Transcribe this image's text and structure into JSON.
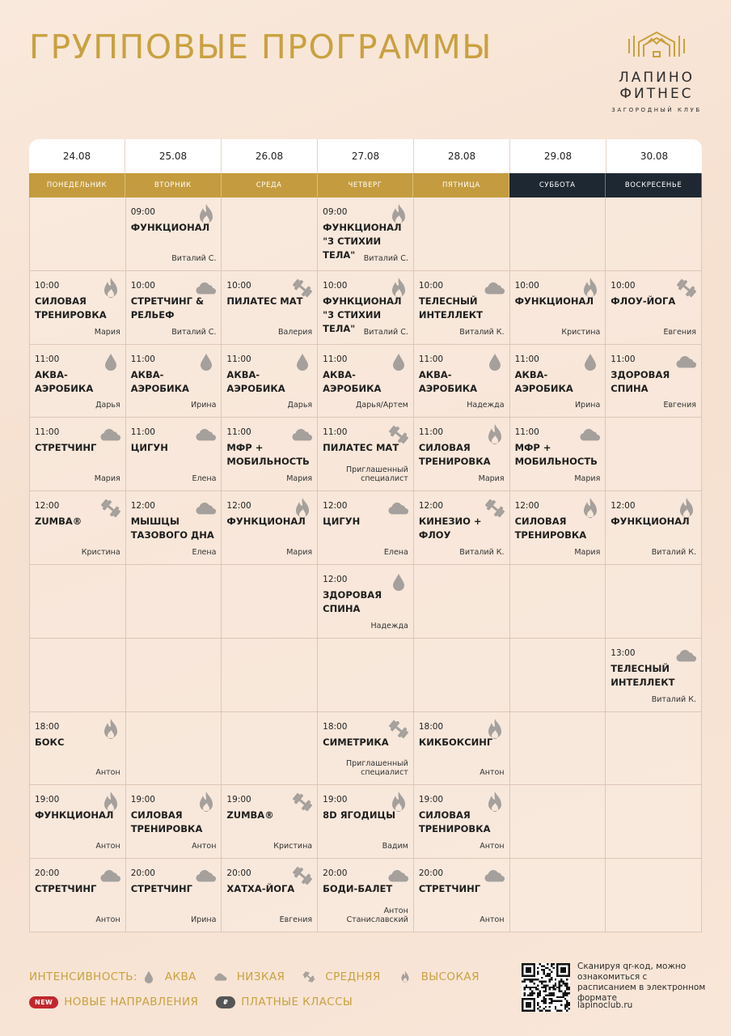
{
  "title": "ГРУППОВЫЕ ПРОГРАММЫ",
  "logo": {
    "line1": "ЛАПИНО",
    "line2": "ФИТНЕС",
    "line3": "ЗАГОРОДНЫЙ КЛУБ",
    "icon": "house-dumbbell-logo",
    "color": "#c9a13f"
  },
  "colors": {
    "gold": "#c49b3e",
    "dark": "#1e2832",
    "icon_gray": "#a5a09c"
  },
  "dates": [
    "24.08",
    "25.08",
    "26.08",
    "27.08",
    "28.08",
    "29.08",
    "30.08"
  ],
  "days": [
    "ПОНЕДЕЛЬНИК",
    "ВТОРНИК",
    "СРЕДА",
    "ЧЕТВЕРГ",
    "ПЯТНИЦА",
    "СУББОТА",
    "ВОСКРЕСЕНЬЕ"
  ],
  "weekend_days": [
    5,
    6
  ],
  "schedule": [
    [
      null,
      {
        "time": "09:00",
        "name": "ФУНКЦИОНАЛ",
        "coach": "Виталий С.",
        "intensity": "high"
      },
      null,
      {
        "time": "09:00",
        "name": "ФУНКЦИОНАЛ\n\"3 СТИХИИ ТЕЛА\"",
        "coach": "Виталий С.",
        "intensity": "high"
      },
      null,
      null,
      null
    ],
    [
      {
        "time": "10:00",
        "name": "СИЛОВАЯ\nТРЕНИРОВКА",
        "coach": "Мария",
        "intensity": "high"
      },
      {
        "time": "10:00",
        "name": "СТРЕТЧИНГ &\nРЕЛЬЕФ",
        "coach": "Виталий С.",
        "intensity": "low"
      },
      {
        "time": "10:00",
        "name": "ПИЛАТЕС МАТ",
        "coach": "Валерия",
        "intensity": "medium"
      },
      {
        "time": "10:00",
        "name": "ФУНКЦИОНАЛ\n\"3 СТИХИИ ТЕЛА\"",
        "coach": "Виталий С.",
        "intensity": "high"
      },
      {
        "time": "10:00",
        "name": "ТЕЛЕСНЫЙ\nИНТЕЛЛЕКТ",
        "coach": "Виталий К.",
        "intensity": "low"
      },
      {
        "time": "10:00",
        "name": "ФУНКЦИОНАЛ",
        "coach": "Кристина",
        "intensity": "high"
      },
      {
        "time": "10:00",
        "name": "ФЛОУ-ЙОГА",
        "coach": "Евгения",
        "intensity": "medium"
      }
    ],
    [
      {
        "time": "11:00",
        "name": "АКВА-\nАЭРОБИКА",
        "coach": "Дарья",
        "intensity": "aqua"
      },
      {
        "time": "11:00",
        "name": "АКВА-\nАЭРОБИКА",
        "coach": "Ирина",
        "intensity": "aqua"
      },
      {
        "time": "11:00",
        "name": "АКВА-\nАЭРОБИКА",
        "coach": "Дарья",
        "intensity": "aqua"
      },
      {
        "time": "11:00",
        "name": "АКВА-\nАЭРОБИКА",
        "coach": "Дарья/Артем",
        "intensity": "aqua"
      },
      {
        "time": "11:00",
        "name": "АКВА-\nАЭРОБИКА",
        "coach": "Надежда",
        "intensity": "aqua"
      },
      {
        "time": "11:00",
        "name": "АКВА-\nАЭРОБИКА",
        "coach": "Ирина",
        "intensity": "aqua"
      },
      {
        "time": "11:00",
        "name": "ЗДОРОВАЯ\nСПИНА",
        "coach": "Евгения",
        "intensity": "low"
      }
    ],
    [
      {
        "time": "11:00",
        "name": "СТРЕТЧИНГ",
        "coach": "Мария",
        "intensity": "low"
      },
      {
        "time": "11:00",
        "name": "ЦИГУН",
        "coach": "Елена",
        "intensity": "low"
      },
      {
        "time": "11:00",
        "name": "МФР +\nМОБИЛЬНОСТЬ",
        "coach": "Мария",
        "intensity": "low"
      },
      {
        "time": "11:00",
        "name": "ПИЛАТЕС МАТ",
        "coach": "Приглашенный\nспециалист",
        "intensity": "medium"
      },
      {
        "time": "11:00",
        "name": "СИЛОВАЯ\nТРЕНИРОВКА",
        "coach": "Мария",
        "intensity": "high"
      },
      {
        "time": "11:00",
        "name": "МФР +\nМОБИЛЬНОСТЬ",
        "coach": "Мария",
        "intensity": "low"
      },
      null
    ],
    [
      {
        "time": "12:00",
        "name": "ZUMBA®",
        "coach": "Кристина",
        "intensity": "medium"
      },
      {
        "time": "12:00",
        "name": "МЫШЦЫ\nТАЗОВОГО ДНА",
        "coach": "Елена",
        "intensity": "low"
      },
      {
        "time": "12:00",
        "name": "ФУНКЦИОНАЛ",
        "coach": "Мария",
        "intensity": "high"
      },
      {
        "time": "12:00",
        "name": "ЦИГУН",
        "coach": "Елена",
        "intensity": "low"
      },
      {
        "time": "12:00",
        "name": "КИНЕЗИО +\nФЛОУ",
        "coach": "Виталий К.",
        "intensity": "medium"
      },
      {
        "time": "12:00",
        "name": "СИЛОВАЯ\nТРЕНИРОВКА",
        "coach": "Мария",
        "intensity": "high"
      },
      {
        "time": "12:00",
        "name": "ФУНКЦИОНАЛ",
        "coach": "Виталий К.",
        "intensity": "high"
      }
    ],
    [
      null,
      null,
      null,
      {
        "time": "12:00",
        "name": "ЗДОРОВАЯ\nСПИНА",
        "coach": "Надежда",
        "intensity": "aqua"
      },
      null,
      null,
      null
    ],
    [
      null,
      null,
      null,
      null,
      null,
      null,
      {
        "time": "13:00",
        "name": "ТЕЛЕСНЫЙ\nИНТЕЛЛЕКТ",
        "coach": "Виталий К.",
        "intensity": "low"
      }
    ],
    [
      {
        "time": "18:00",
        "name": "БОКС",
        "coach": "Антон",
        "intensity": "high"
      },
      null,
      null,
      {
        "time": "18:00",
        "name": "СИМЕТРИКА",
        "coach": "Приглашенный\nспециалист",
        "intensity": "medium"
      },
      {
        "time": "18:00",
        "name": "КИКБОКСИНГ",
        "coach": "Антон",
        "intensity": "high"
      },
      null,
      null
    ],
    [
      {
        "time": "19:00",
        "name": "ФУНКЦИОНАЛ",
        "coach": "Антон",
        "intensity": "high"
      },
      {
        "time": "19:00",
        "name": "СИЛОВАЯ\nТРЕНИРОВКА",
        "coach": "Антон",
        "intensity": "high"
      },
      {
        "time": "19:00",
        "name": "ZUMBA®",
        "coach": "Кристина",
        "intensity": "medium"
      },
      {
        "time": "19:00",
        "name": "8D ЯГОДИЦЫ",
        "coach": "Вадим",
        "intensity": "high"
      },
      {
        "time": "19:00",
        "name": "СИЛОВАЯ\nТРЕНИРОВКА",
        "coach": "Антон",
        "intensity": "high"
      },
      null,
      null
    ],
    [
      {
        "time": "20:00",
        "name": "СТРЕТЧИНГ",
        "coach": "Антон",
        "intensity": "low"
      },
      {
        "time": "20:00",
        "name": "СТРЕТЧИНГ",
        "coach": "Ирина",
        "intensity": "low"
      },
      {
        "time": "20:00",
        "name": "ХАТХА-ЙОГА",
        "coach": "Евгения",
        "intensity": "medium"
      },
      {
        "time": "20:00",
        "name": "БОДИ-БАЛЕТ",
        "coach": "Антон\nСтаниславский",
        "intensity": "low"
      },
      {
        "time": "20:00",
        "name": "СТРЕТЧИНГ",
        "coach": "Антон",
        "intensity": "low"
      },
      null,
      null
    ]
  ],
  "legend": {
    "label": "ИНТЕНСИВНОСТЬ:",
    "items": [
      {
        "key": "aqua",
        "label": "АКВА",
        "icon": "drop-icon"
      },
      {
        "key": "low",
        "label": "НИЗКАЯ",
        "icon": "cloud-icon"
      },
      {
        "key": "medium",
        "label": "СРЕДНЯЯ",
        "icon": "dumbbell-icon"
      },
      {
        "key": "high",
        "label": "ВЫСОКАЯ",
        "icon": "flame-icon"
      }
    ],
    "new_badge": "NEW",
    "new_label": "НОВЫЕ НАПРАВЛЕНИЯ",
    "paid_badge": "₽",
    "paid_label": "ПЛАТНЫЕ КЛАССЫ"
  },
  "qr": {
    "text": "Сканируя qr-код, можно ознакомиться с расписанием в электронном формате",
    "url": "lapinoclub.ru",
    "icon": "qr-code"
  }
}
